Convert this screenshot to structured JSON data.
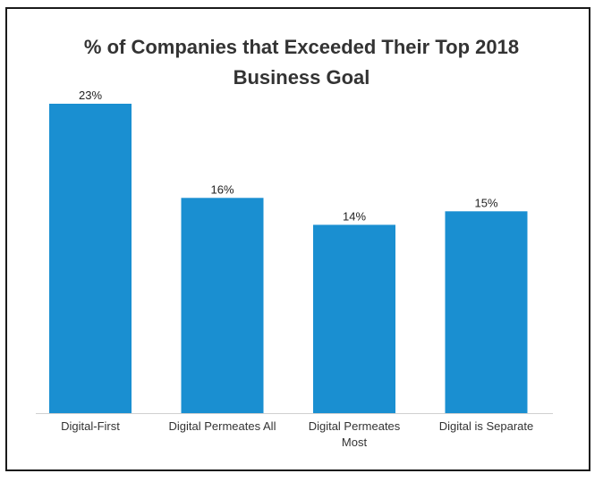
{
  "chart_data": {
    "type": "bar",
    "title_lines": [
      "% of Companies that Exceeded Their Top 2018",
      "Business Goal"
    ],
    "categories": [
      [
        "Digital-First"
      ],
      [
        "Digital Permeates All"
      ],
      [
        "Digital Permeates",
        "Most"
      ],
      [
        "Digital is Separate"
      ]
    ],
    "values": [
      23,
      16,
      14,
      15
    ],
    "value_labels": [
      "23%",
      "16%",
      "14%",
      "15%"
    ],
    "xlabel": "",
    "ylabel": "",
    "ylim": [
      0,
      23
    ],
    "grid": false,
    "legend": "none",
    "bar_color": "#1a8fd1",
    "axis_color": "#d0d0d0"
  }
}
